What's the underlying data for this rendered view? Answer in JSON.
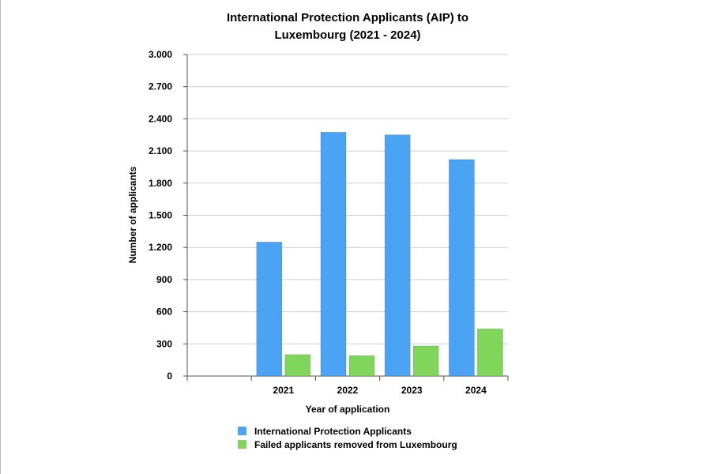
{
  "chart_data": {
    "type": "bar",
    "title_line1": "International Protection Applicants (AIP) to",
    "title_line2": "Luxembourg (2021 - 2024)",
    "xlabel": "Year of application",
    "ylabel": "Number of applicants",
    "categories": [
      "",
      "2021",
      "2022",
      "2023",
      "2024"
    ],
    "series": [
      {
        "name": "International Protection Applicants",
        "color": "#4aa3f3",
        "values": [
          null,
          1250,
          2275,
          2250,
          2020
        ]
      },
      {
        "name": "Failed applicants removed from Luxembourg",
        "color": "#7fd65a",
        "values": [
          null,
          200,
          190,
          280,
          440
        ]
      }
    ],
    "ylim": [
      0,
      3000
    ],
    "yticks": [
      0,
      300,
      600,
      900,
      1200,
      1500,
      1800,
      2100,
      2400,
      2700,
      3000
    ],
    "ytick_labels": [
      "0",
      "300",
      "600",
      "900",
      "1.200",
      "1.500",
      "1.800",
      "2.100",
      "2.400",
      "2.700",
      "3.000"
    ],
    "grid": true,
    "legend_position": "bottom"
  }
}
